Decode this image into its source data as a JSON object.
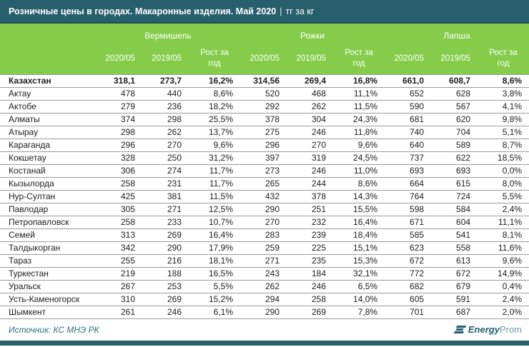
{
  "header": {
    "title": "Розничные цены в городах. Макаронные изделия. Май 2020",
    "separator": "|",
    "units": "тг за кг"
  },
  "chart_data": {
    "type": "table",
    "title": "Розничные цены в городах. Макаронные изделия. Май 2020 | тг за кг",
    "groups": [
      {
        "label": "Вермишель"
      },
      {
        "label": "Рожки"
      },
      {
        "label": "Лапша"
      }
    ],
    "subheaders": [
      "2020/05",
      "2019/05",
      "Рост за год"
    ],
    "rows": [
      {
        "city": "Казахстан",
        "bold": true,
        "values": [
          "318,1",
          "273,7",
          "16,2%",
          "314,56",
          "269,4",
          "16,8%",
          "661,0",
          "608,7",
          "8,6%"
        ]
      },
      {
        "city": "Актау",
        "bold": false,
        "values": [
          "478",
          "440",
          "8,6%",
          "520",
          "468",
          "11,1%",
          "652",
          "628",
          "3,8%"
        ]
      },
      {
        "city": "Актобе",
        "bold": false,
        "values": [
          "279",
          "236",
          "18,2%",
          "292",
          "262",
          "11,5%",
          "590",
          "567",
          "4,1%"
        ]
      },
      {
        "city": "Алматы",
        "bold": false,
        "values": [
          "374",
          "298",
          "25,5%",
          "378",
          "304",
          "24,3%",
          "681",
          "620",
          "9,8%"
        ]
      },
      {
        "city": "Атырау",
        "bold": false,
        "values": [
          "298",
          "262",
          "13,7%",
          "275",
          "246",
          "11,8%",
          "740",
          "704",
          "5,1%"
        ]
      },
      {
        "city": "Караганда",
        "bold": false,
        "values": [
          "296",
          "270",
          "9,6%",
          "296",
          "270",
          "9,6%",
          "640",
          "589",
          "8,7%"
        ]
      },
      {
        "city": "Кокшетау",
        "bold": false,
        "values": [
          "328",
          "250",
          "31,2%",
          "397",
          "319",
          "24,5%",
          "737",
          "622",
          "18,5%"
        ]
      },
      {
        "city": "Костанай",
        "bold": false,
        "values": [
          "306",
          "274",
          "11,7%",
          "273",
          "246",
          "11,0%",
          "693",
          "693",
          "0,0%"
        ]
      },
      {
        "city": "Кызылорда",
        "bold": false,
        "values": [
          "258",
          "231",
          "11,7%",
          "265",
          "244",
          "8,6%",
          "664",
          "615",
          "8,0%"
        ]
      },
      {
        "city": "Нур-Султан",
        "bold": false,
        "values": [
          "425",
          "381",
          "11,5%",
          "432",
          "378",
          "14,3%",
          "764",
          "724",
          "5,5%"
        ]
      },
      {
        "city": "Павлодар",
        "bold": false,
        "values": [
          "305",
          "271",
          "12,5%",
          "290",
          "251",
          "15,5%",
          "598",
          "584",
          "2,4%"
        ]
      },
      {
        "city": "Петропавловск",
        "bold": false,
        "values": [
          "258",
          "233",
          "10,7%",
          "270",
          "232",
          "16,4%",
          "671",
          "604",
          "11,1%"
        ]
      },
      {
        "city": "Семей",
        "bold": false,
        "values": [
          "313",
          "269",
          "16,4%",
          "283",
          "239",
          "18,4%",
          "585",
          "541",
          "8,1%"
        ]
      },
      {
        "city": "Талдыкорган",
        "bold": false,
        "values": [
          "342",
          "290",
          "17,9%",
          "259",
          "225",
          "15,1%",
          "623",
          "558",
          "11,6%"
        ]
      },
      {
        "city": "Тараз",
        "bold": false,
        "values": [
          "255",
          "216",
          "18,1%",
          "271",
          "235",
          "15,3%",
          "672",
          "613",
          "9,6%"
        ]
      },
      {
        "city": "Туркестан",
        "bold": false,
        "values": [
          "219",
          "188",
          "16,5%",
          "243",
          "184",
          "32,1%",
          "772",
          "672",
          "14,9%"
        ]
      },
      {
        "city": "Уральск",
        "bold": false,
        "values": [
          "267",
          "253",
          "5,5%",
          "262",
          "246",
          "6,5%",
          "682",
          "679",
          "0,4%"
        ]
      },
      {
        "city": "Усть-Каменогорск",
        "bold": false,
        "values": [
          "310",
          "269",
          "15,2%",
          "294",
          "258",
          "14,0%",
          "605",
          "591",
          "2,4%"
        ]
      },
      {
        "city": "Шымкент",
        "bold": false,
        "values": [
          "261",
          "246",
          "6,1%",
          "290",
          "269",
          "7,8%",
          "701",
          "687",
          "2,0%"
        ]
      }
    ]
  },
  "footer": {
    "source": "Источник: КС МНЭ РК",
    "logo_bold": "Energy",
    "logo_light": "Prom"
  },
  "colors": {
    "teal": "#275f6c",
    "teal-dark": "#1f4f5b",
    "green": "#85cc4a",
    "text": "#202020",
    "rowline": "#9b9b9b",
    "source": "#2e6e80",
    "logo-dark": "#1e5f6d",
    "logo-light": "#6d9faa"
  }
}
